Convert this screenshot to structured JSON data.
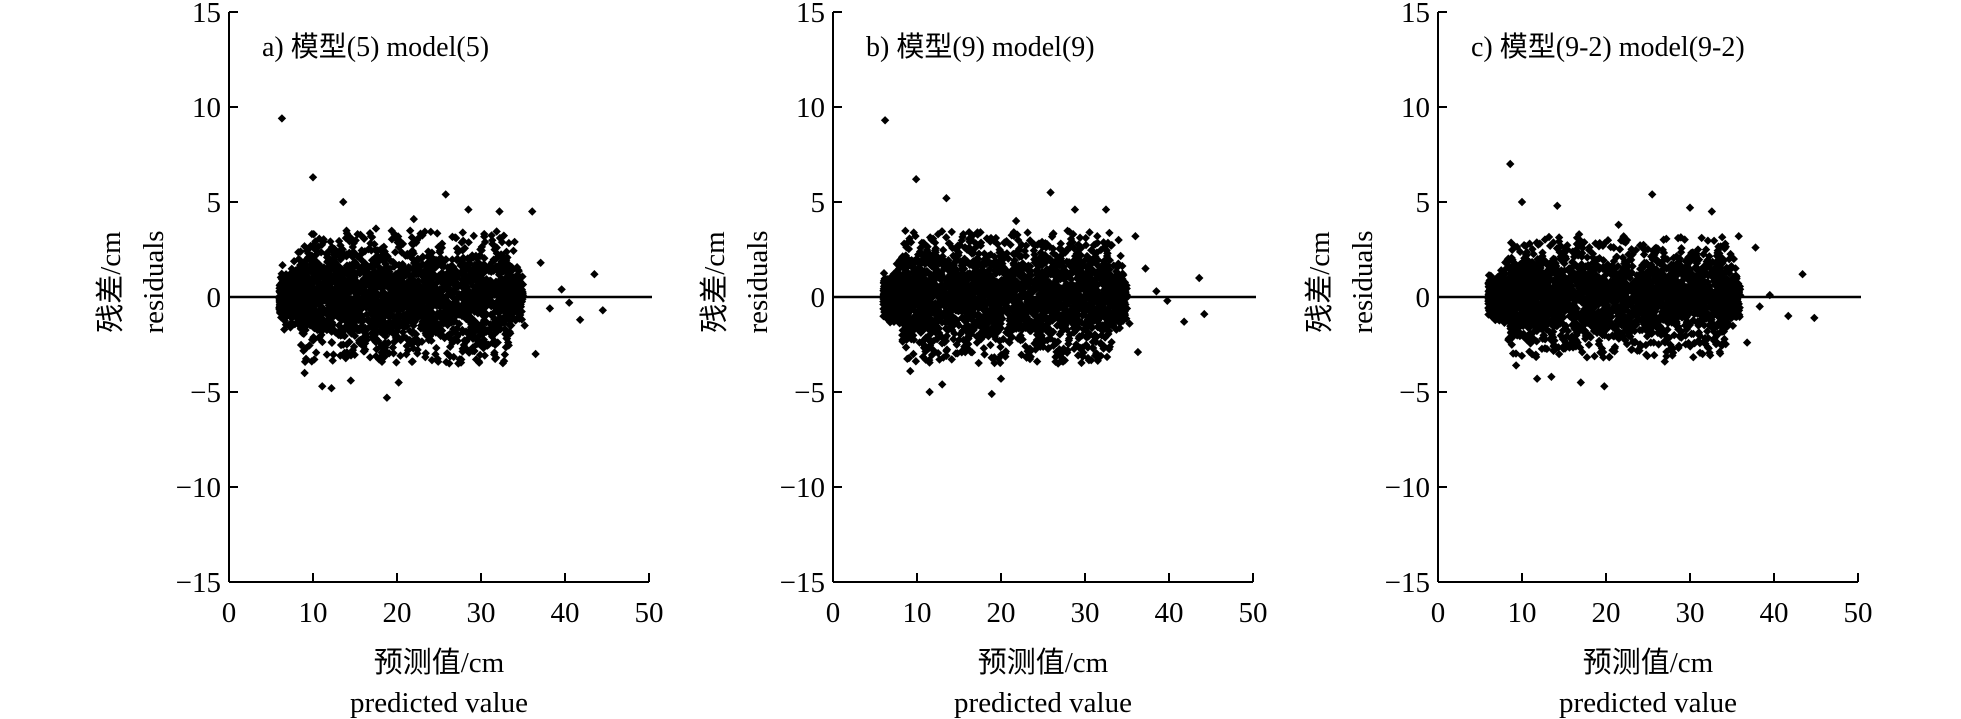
{
  "chart_data": [
    {
      "type": "scatter",
      "title": "a) 模型(5) model(5)",
      "xlabel": "预测值/cm",
      "xlabel_en": "predicted value",
      "ylabel": "残差/cm",
      "ylabel_en": "residuals",
      "xlim": [
        0,
        50
      ],
      "ylim": [
        -15,
        15
      ],
      "xticks": [
        0,
        10,
        20,
        30,
        40,
        50
      ],
      "yticks": [
        -15,
        -10,
        -5,
        0,
        5,
        10,
        15
      ],
      "ytick_labels": [
        "−15",
        "−10",
        "−5",
        "0",
        "5",
        "10",
        "15"
      ],
      "reference_line_y": 0,
      "grid": false,
      "marker": "diamond",
      "color": "#000000",
      "cluster": {
        "x_range": [
          6,
          35
        ],
        "residual_band": [
          -3.5,
          3.5
        ]
      },
      "points": [
        {
          "x": 6.3,
          "y": 9.4
        },
        {
          "x": 10.0,
          "y": 6.3
        },
        {
          "x": 13.6,
          "y": 5.0
        },
        {
          "x": 25.8,
          "y": 5.4
        },
        {
          "x": 28.5,
          "y": 4.6
        },
        {
          "x": 32.2,
          "y": 4.5
        },
        {
          "x": 36.1,
          "y": 4.5
        },
        {
          "x": 43.5,
          "y": 1.2
        },
        {
          "x": 44.5,
          "y": -0.7
        },
        {
          "x": 41.8,
          "y": -1.2
        },
        {
          "x": 40.5,
          "y": -0.3
        },
        {
          "x": 39.6,
          "y": 0.4
        },
        {
          "x": 38.2,
          "y": -0.6
        },
        {
          "x": 37.1,
          "y": 1.8
        },
        {
          "x": 36.5,
          "y": -3.0
        },
        {
          "x": 18.8,
          "y": -5.3
        },
        {
          "x": 12.2,
          "y": -4.8
        },
        {
          "x": 11.1,
          "y": -4.7
        },
        {
          "x": 20.2,
          "y": -4.5
        },
        {
          "x": 9.0,
          "y": -4.0
        },
        {
          "x": 14.5,
          "y": -4.4
        },
        {
          "x": 27.3,
          "y": -3.5
        },
        {
          "x": 31.8,
          "y": -3.2
        },
        {
          "x": 22.0,
          "y": 4.1
        },
        {
          "x": 17.5,
          "y": 3.6
        },
        {
          "x": 34.0,
          "y": 2.9
        },
        {
          "x": 35.2,
          "y": -1.5
        }
      ]
    },
    {
      "type": "scatter",
      "title": "b) 模型(9) model(9)",
      "xlabel": "预测值/cm",
      "xlabel_en": "predicted value",
      "ylabel": "残差/cm",
      "ylabel_en": "residuals",
      "xlim": [
        0,
        50
      ],
      "ylim": [
        -15,
        15
      ],
      "xticks": [
        0,
        10,
        20,
        30,
        40,
        50
      ],
      "yticks": [
        -15,
        -10,
        -5,
        0,
        5,
        10,
        15
      ],
      "ytick_labels": [
        "−15",
        "−10",
        "−5",
        "0",
        "5",
        "10",
        "15"
      ],
      "reference_line_y": 0,
      "grid": false,
      "marker": "diamond",
      "color": "#000000",
      "cluster": {
        "x_range": [
          6,
          35
        ],
        "residual_band": [
          -3.5,
          3.5
        ]
      },
      "points": [
        {
          "x": 6.2,
          "y": 9.3
        },
        {
          "x": 9.9,
          "y": 6.2
        },
        {
          "x": 13.5,
          "y": 5.2
        },
        {
          "x": 25.9,
          "y": 5.5
        },
        {
          "x": 28.8,
          "y": 4.6
        },
        {
          "x": 32.5,
          "y": 4.6
        },
        {
          "x": 36.0,
          "y": 3.2
        },
        {
          "x": 43.6,
          "y": 1.0
        },
        {
          "x": 44.2,
          "y": -0.9
        },
        {
          "x": 41.8,
          "y": -1.3
        },
        {
          "x": 39.8,
          "y": -0.2
        },
        {
          "x": 38.5,
          "y": 0.3
        },
        {
          "x": 37.2,
          "y": 1.5
        },
        {
          "x": 36.3,
          "y": -2.9
        },
        {
          "x": 18.9,
          "y": -5.1
        },
        {
          "x": 11.5,
          "y": -5.0
        },
        {
          "x": 13.0,
          "y": -4.6
        },
        {
          "x": 20.0,
          "y": -4.3
        },
        {
          "x": 9.2,
          "y": -3.9
        },
        {
          "x": 26.8,
          "y": -3.5
        },
        {
          "x": 31.9,
          "y": -3.1
        },
        {
          "x": 21.8,
          "y": 4.0
        },
        {
          "x": 17.2,
          "y": 3.4
        },
        {
          "x": 34.0,
          "y": 3.0
        },
        {
          "x": 35.3,
          "y": -1.4
        }
      ]
    },
    {
      "type": "scatter",
      "title": "c) 模型(9-2) model(9-2)",
      "xlabel": "预测值/cm",
      "xlabel_en": "predicted value",
      "ylabel": "残差/cm",
      "ylabel_en": "residuals",
      "xlim": [
        0,
        50
      ],
      "ylim": [
        -15,
        15
      ],
      "xticks": [
        0,
        10,
        20,
        30,
        40,
        50
      ],
      "yticks": [
        -15,
        -10,
        -5,
        0,
        5,
        10,
        15
      ],
      "ytick_labels": [
        "−15",
        "−10",
        "−5",
        "0",
        "5",
        "10",
        "15"
      ],
      "reference_line_y": 0,
      "grid": false,
      "marker": "diamond",
      "color": "#000000",
      "cluster": {
        "x_range": [
          6,
          36
        ],
        "residual_band": [
          -3.2,
          3.2
        ]
      },
      "points": [
        {
          "x": 8.6,
          "y": 7.0
        },
        {
          "x": 10.0,
          "y": 5.0
        },
        {
          "x": 14.2,
          "y": 4.8
        },
        {
          "x": 25.5,
          "y": 5.4
        },
        {
          "x": 30.0,
          "y": 4.7
        },
        {
          "x": 32.6,
          "y": 4.5
        },
        {
          "x": 35.8,
          "y": 3.2
        },
        {
          "x": 37.8,
          "y": 2.6
        },
        {
          "x": 43.4,
          "y": 1.2
        },
        {
          "x": 44.8,
          "y": -1.1
        },
        {
          "x": 41.7,
          "y": -1.0
        },
        {
          "x": 39.5,
          "y": 0.1
        },
        {
          "x": 38.3,
          "y": -0.5
        },
        {
          "x": 36.8,
          "y": -2.4
        },
        {
          "x": 19.8,
          "y": -4.7
        },
        {
          "x": 11.8,
          "y": -4.3
        },
        {
          "x": 13.5,
          "y": -4.2
        },
        {
          "x": 17.0,
          "y": -4.5
        },
        {
          "x": 9.3,
          "y": -3.6
        },
        {
          "x": 27.0,
          "y": -3.4
        },
        {
          "x": 31.5,
          "y": -3.0
        },
        {
          "x": 21.5,
          "y": 3.8
        },
        {
          "x": 16.8,
          "y": 3.3
        },
        {
          "x": 34.2,
          "y": 2.8
        }
      ]
    }
  ]
}
